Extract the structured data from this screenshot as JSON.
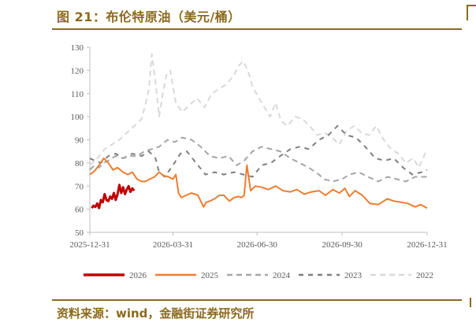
{
  "figure": {
    "title": "图 21：布伦特原油（美元/桶）",
    "source": "资料来源：wind，金融街证券研究所"
  },
  "chart_data": {
    "type": "line",
    "title": "",
    "xlabel": "",
    "ylabel": "",
    "ylim": [
      50,
      130
    ],
    "yticks": [
      50,
      60,
      70,
      80,
      90,
      100,
      110,
      120,
      130
    ],
    "xlim": [
      "2025-12-31",
      "2026-12-31"
    ],
    "xticks": [
      "2025-12-31",
      "2026-03-31",
      "2026-06-30",
      "2026-09-30",
      "2026-12-31"
    ],
    "grid": false,
    "legend_position": "bottom",
    "series": [
      {
        "name": "2026",
        "color": "#c00000",
        "width": 3,
        "dash": "",
        "x": [
          "2026-01-02",
          "2026-01-04",
          "2026-01-06",
          "2026-01-08",
          "2026-01-10",
          "2026-01-12",
          "2026-01-14",
          "2026-01-16",
          "2026-01-18",
          "2026-01-20",
          "2026-01-22",
          "2026-01-24",
          "2026-01-26",
          "2026-01-28",
          "2026-01-30",
          "2026-02-01",
          "2026-02-03",
          "2026-02-05",
          "2026-02-07",
          "2026-02-09",
          "2026-02-11",
          "2026-02-13",
          "2026-02-15",
          "2026-02-17"
        ],
        "y": [
          60.5,
          61.5,
          61,
          62.5,
          60.5,
          64,
          63,
          66.5,
          64,
          63.5,
          65.5,
          64.5,
          67,
          64,
          66.5,
          70.5,
          67,
          69.5,
          66.5,
          68.5,
          70,
          67.5,
          69,
          68
        ]
      },
      {
        "name": "2025",
        "color": "#ed7d31",
        "width": 2,
        "dash": "",
        "x": [
          "2025-12-31",
          "2026-01-05",
          "2026-01-10",
          "2026-01-15",
          "2026-01-20",
          "2026-01-25",
          "2026-01-30",
          "2026-02-05",
          "2026-02-10",
          "2026-02-15",
          "2026-02-20",
          "2026-02-25",
          "2026-03-01",
          "2026-03-06",
          "2026-03-11",
          "2026-03-16",
          "2026-03-21",
          "2026-03-26",
          "2026-03-31",
          "2026-04-03",
          "2026-04-06",
          "2026-04-09",
          "2026-04-14",
          "2026-04-20",
          "2026-04-27",
          "2026-05-03",
          "2026-05-06",
          "2026-05-10",
          "2026-05-15",
          "2026-05-20",
          "2026-05-25",
          "2026-05-31",
          "2026-06-05",
          "2026-06-10",
          "2026-06-13",
          "2026-06-16",
          "2026-06-19",
          "2026-06-23",
          "2026-06-28",
          "2026-07-05",
          "2026-07-12",
          "2026-07-20",
          "2026-07-28",
          "2026-08-05",
          "2026-08-12",
          "2026-08-20",
          "2026-08-28",
          "2026-09-05",
          "2026-09-12",
          "2026-09-20",
          "2026-09-27",
          "2026-10-03",
          "2026-10-08",
          "2026-10-14",
          "2026-10-22",
          "2026-10-30",
          "2026-11-08",
          "2026-11-18",
          "2026-11-25",
          "2026-12-03",
          "2026-12-10",
          "2026-12-18",
          "2026-12-24",
          "2026-12-31"
        ],
        "y": [
          75,
          76.5,
          79,
          82,
          80,
          77,
          78,
          76,
          75,
          76,
          73,
          72,
          72,
          73,
          74,
          76,
          74.5,
          74,
          73,
          75,
          67,
          65,
          66,
          67,
          66,
          61,
          63,
          63.5,
          64.5,
          66,
          66,
          63.5,
          65,
          65.5,
          65,
          66,
          79,
          68,
          70,
          69.5,
          68.5,
          70,
          68,
          67.5,
          68.5,
          66.5,
          67.5,
          68,
          66,
          68.5,
          67,
          69,
          65.5,
          68,
          66,
          62.5,
          62,
          64.5,
          63.5,
          63,
          62.5,
          61,
          62,
          60.5
        ]
      },
      {
        "name": "2024",
        "color": "#a6a6a6",
        "width": 2,
        "dash": "7,5",
        "x": [
          "2025-12-31",
          "2026-01-05",
          "2026-01-10",
          "2026-01-15",
          "2026-01-20",
          "2026-01-28",
          "2026-02-05",
          "2026-02-12",
          "2026-02-20",
          "2026-02-28",
          "2026-03-08",
          "2026-03-16",
          "2026-03-25",
          "2026-04-02",
          "2026-04-10",
          "2026-04-20",
          "2026-04-30",
          "2026-05-10",
          "2026-05-20",
          "2026-05-30",
          "2026-06-08",
          "2026-06-16",
          "2026-06-25",
          "2026-07-05",
          "2026-07-15",
          "2026-07-25",
          "2026-08-05",
          "2026-08-15",
          "2026-08-25",
          "2026-09-05",
          "2026-09-10",
          "2026-09-20",
          "2026-09-30",
          "2026-10-08",
          "2026-10-18",
          "2026-10-28",
          "2026-11-08",
          "2026-11-18",
          "2026-11-28",
          "2026-12-08",
          "2026-12-18",
          "2026-12-31"
        ],
        "y": [
          77,
          79,
          78,
          80,
          81,
          83,
          82,
          83,
          83,
          85,
          86,
          87,
          90,
          89,
          91,
          90,
          87,
          83,
          82,
          83,
          79,
          81,
          85,
          87,
          86,
          85,
          82,
          80,
          78,
          75,
          73,
          72,
          73,
          75,
          76,
          74,
          72,
          74,
          73,
          72,
          74,
          74
        ]
      },
      {
        "name": "2023",
        "color": "#7f7f7f",
        "width": 2,
        "dash": "6,6",
        "x": [
          "2025-12-31",
          "2026-01-05",
          "2026-01-12",
          "2026-01-20",
          "2026-01-28",
          "2026-02-05",
          "2026-02-15",
          "2026-02-25",
          "2026-03-05",
          "2026-03-12",
          "2026-03-16",
          "2026-03-22",
          "2026-03-31",
          "2026-04-08",
          "2026-04-15",
          "2026-04-25",
          "2026-05-05",
          "2026-05-15",
          "2026-05-25",
          "2026-06-05",
          "2026-06-15",
          "2026-06-25",
          "2026-07-05",
          "2026-07-15",
          "2026-07-25",
          "2026-08-05",
          "2026-08-15",
          "2026-08-25",
          "2026-09-05",
          "2026-09-15",
          "2026-09-25",
          "2026-10-05",
          "2026-10-15",
          "2026-10-25",
          "2026-11-05",
          "2026-11-15",
          "2026-11-25",
          "2026-12-05",
          "2026-12-15",
          "2026-12-25",
          "2026-12-31"
        ],
        "y": [
          82,
          81,
          80,
          83,
          84,
          82,
          84,
          83,
          85,
          82,
          76,
          74,
          79,
          84,
          85,
          80,
          75,
          76,
          75,
          76,
          75,
          74,
          79,
          80,
          83,
          86,
          87,
          86,
          90,
          92,
          96,
          92,
          91,
          87,
          82,
          81,
          82,
          78,
          75,
          76,
          77
        ]
      },
      {
        "name": "2022",
        "color": "#d9d9d9",
        "width": 2,
        "dash": "7,5",
        "x": [
          "2025-12-31",
          "2026-01-08",
          "2026-01-16",
          "2026-01-24",
          "2026-02-01",
          "2026-02-09",
          "2026-02-17",
          "2026-02-25",
          "2026-03-01",
          "2026-03-05",
          "2026-03-08",
          "2026-03-12",
          "2026-03-16",
          "2026-03-20",
          "2026-03-24",
          "2026-03-28",
          "2026-04-03",
          "2026-04-10",
          "2026-04-18",
          "2026-04-26",
          "2026-05-04",
          "2026-05-12",
          "2026-05-20",
          "2026-05-28",
          "2026-06-05",
          "2026-06-10",
          "2026-06-15",
          "2026-06-20",
          "2026-06-25",
          "2026-07-02",
          "2026-07-08",
          "2026-07-14",
          "2026-07-20",
          "2026-07-26",
          "2026-08-02",
          "2026-08-10",
          "2026-08-18",
          "2026-08-26",
          "2026-09-03",
          "2026-09-11",
          "2026-09-19",
          "2026-09-27",
          "2026-10-05",
          "2026-10-13",
          "2026-10-21",
          "2026-10-29",
          "2026-11-06",
          "2026-11-14",
          "2026-11-22",
          "2026-11-30",
          "2026-12-08",
          "2026-12-16",
          "2026-12-22",
          "2026-12-31"
        ],
        "y": [
          79,
          82,
          86,
          88,
          90,
          93,
          96,
          99,
          105,
          112,
          127,
          115,
          100,
          110,
          118,
          120,
          106,
          102,
          105,
          108,
          104,
          110,
          112,
          114,
          118,
          122,
          124,
          120,
          113,
          108,
          104,
          100,
          106,
          98,
          96,
          100,
          99,
          96,
          92,
          93,
          91,
          88,
          94,
          96,
          93,
          92,
          96,
          90,
          86,
          84,
          80,
          82,
          78,
          86
        ]
      }
    ]
  }
}
